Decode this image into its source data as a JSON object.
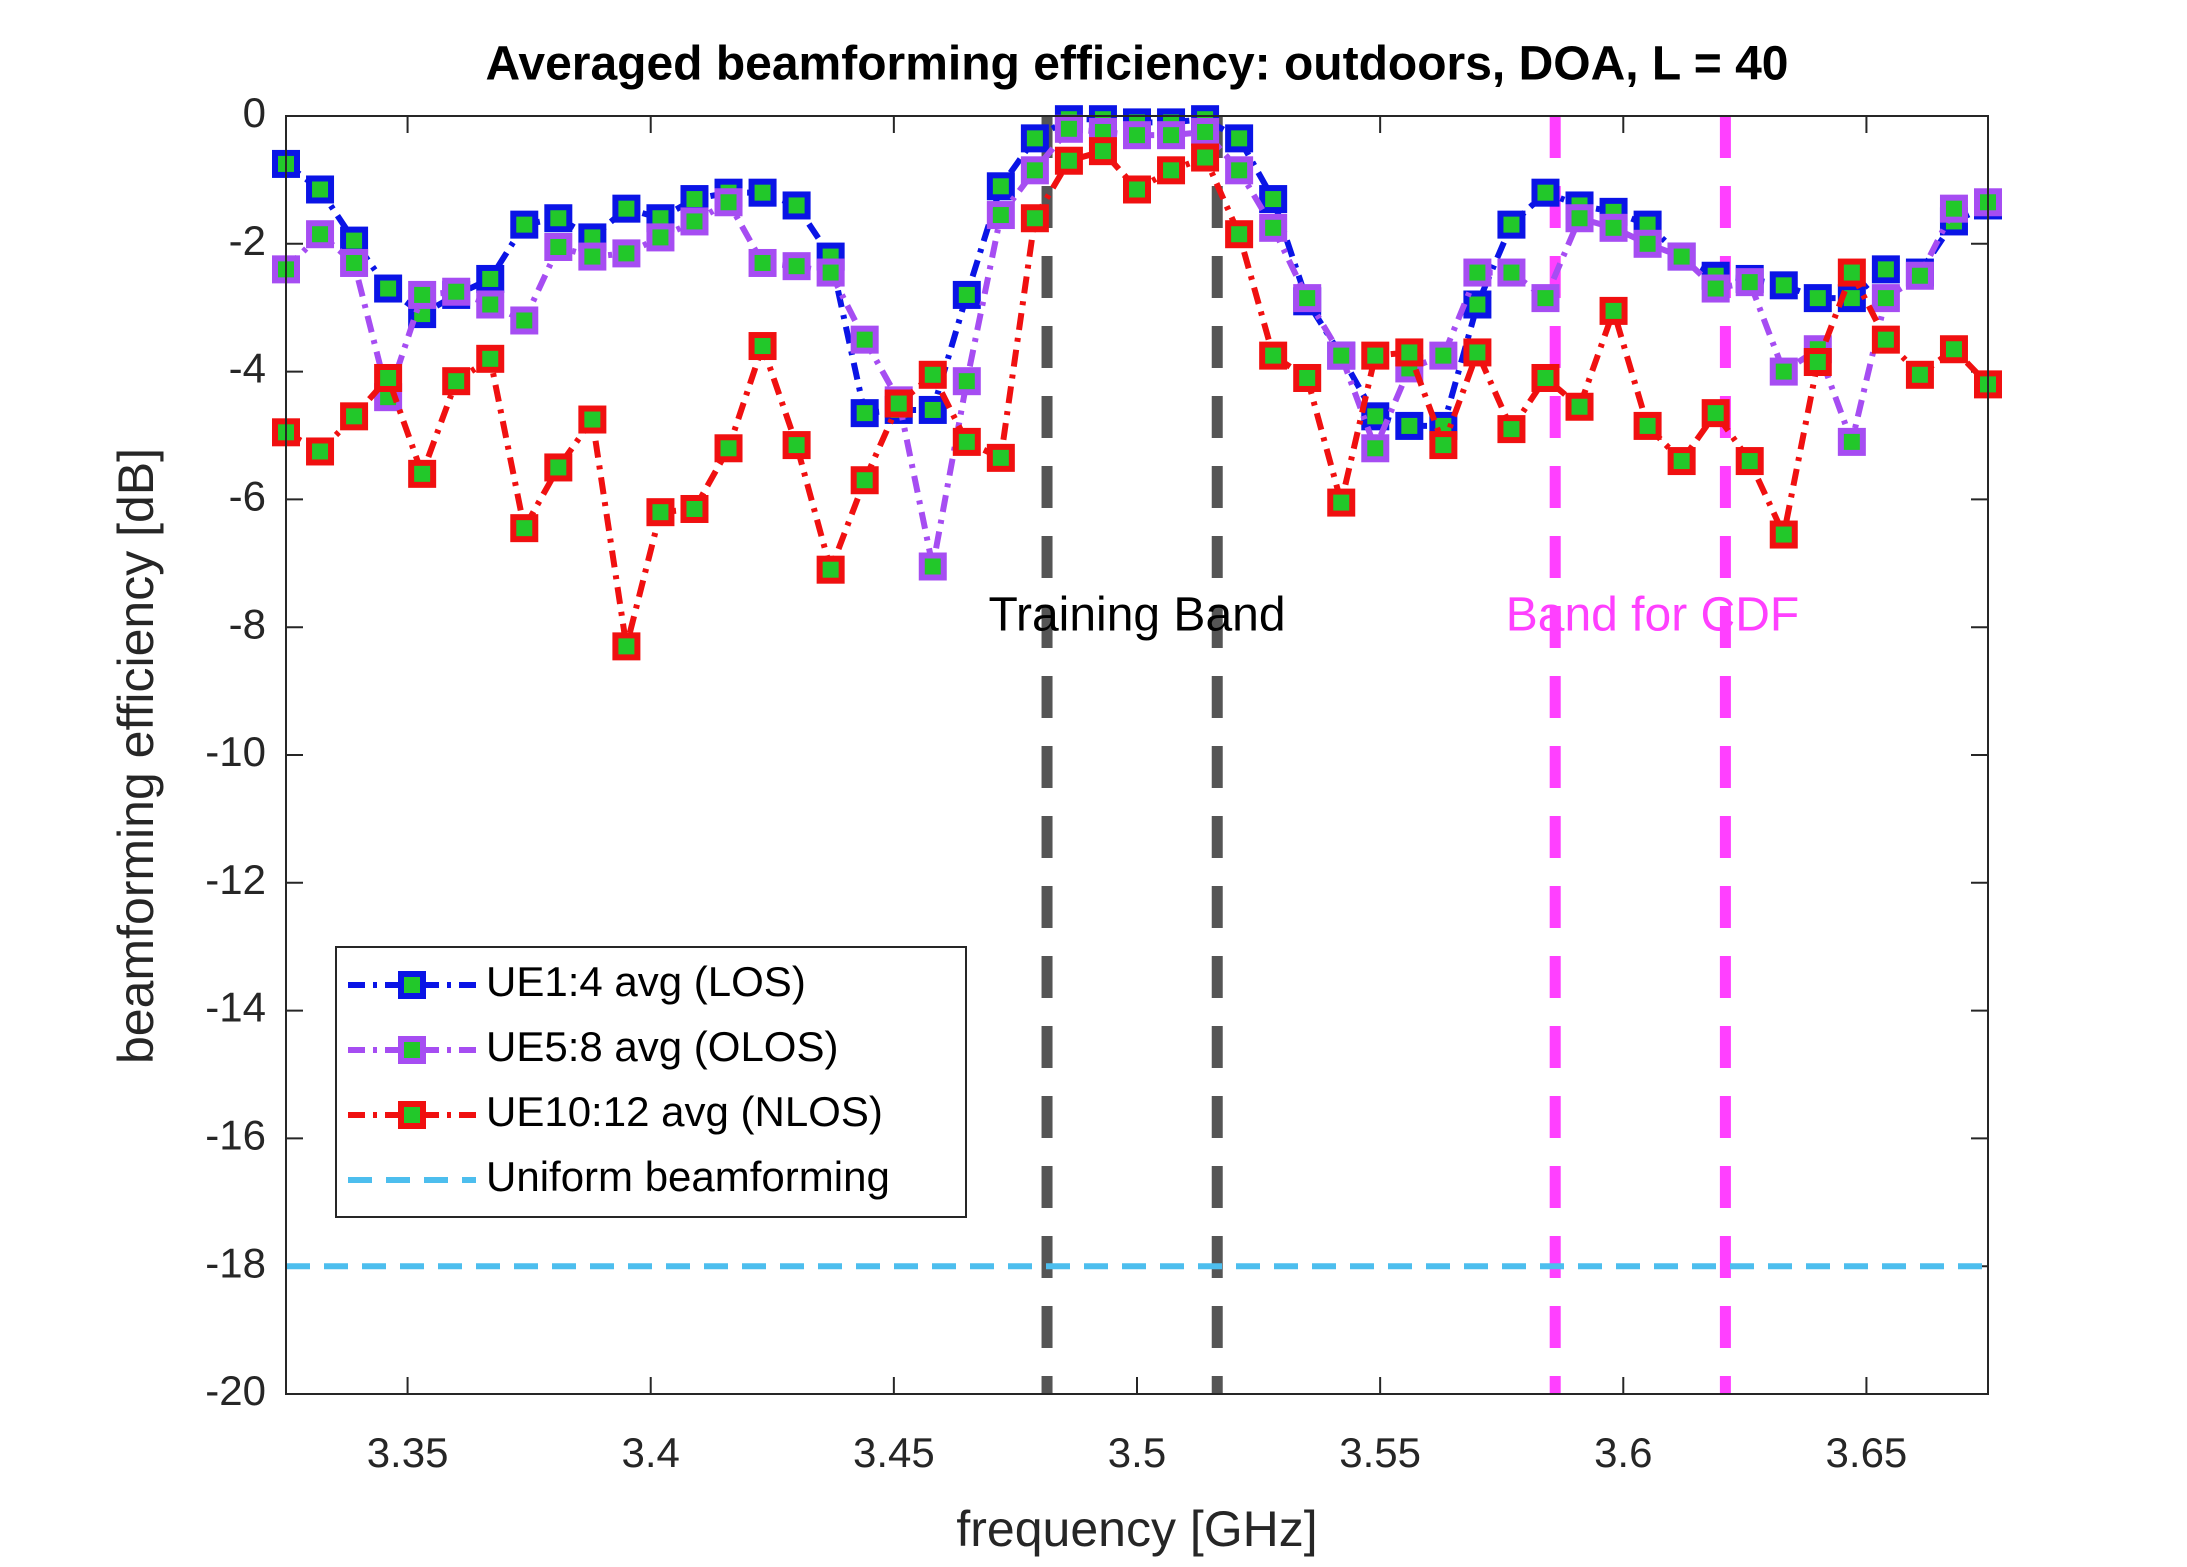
{
  "chart_data": {
    "type": "line",
    "title": "Averaged beamforming efficiency: outdoors, DOA, L = 40",
    "xlabel": "frequency [GHz]",
    "ylabel": "beamforming efficiency [dB]",
    "xlim": [
      3.325,
      3.675
    ],
    "ylim": [
      -20,
      0
    ],
    "xticks": [
      3.35,
      3.4,
      3.45,
      3.5,
      3.55,
      3.6,
      3.65
    ],
    "yticks": [
      -20,
      -18,
      -16,
      -14,
      -12,
      -10,
      -8,
      -6,
      -4,
      -2,
      0
    ],
    "legend": "lower left",
    "marker_fill": "#22c82a",
    "x": [
      3.325,
      3.332,
      3.339,
      3.346,
      3.353,
      3.36,
      3.367,
      3.374,
      3.381,
      3.388,
      3.395,
      3.402,
      3.409,
      3.416,
      3.423,
      3.43,
      3.437,
      3.444,
      3.451,
      3.458,
      3.465,
      3.472,
      3.479,
      3.486,
      3.493,
      3.5,
      3.507,
      3.514,
      3.521,
      3.528,
      3.535,
      3.542,
      3.549,
      3.556,
      3.563,
      3.57,
      3.577,
      3.584,
      3.591,
      3.598,
      3.605,
      3.612,
      3.619,
      3.626,
      3.633,
      3.64,
      3.647,
      3.654,
      3.661,
      3.668,
      3.675
    ],
    "series": [
      {
        "name": "UE1:4 avg (LOS)",
        "color": "#0a14e6",
        "values": [
          -0.75,
          -1.15,
          -1.95,
          -2.7,
          -3.1,
          -2.8,
          -2.55,
          -1.7,
          -1.6,
          -1.9,
          -1.45,
          -1.6,
          -1.3,
          -1.2,
          -1.2,
          -1.4,
          -2.2,
          -4.65,
          -4.6,
          -4.6,
          -2.8,
          -1.1,
          -0.35,
          -0.05,
          -0.05,
          -0.1,
          -0.1,
          -0.05,
          -0.35,
          -1.3,
          -2.9,
          -3.75,
          -4.7,
          -4.85,
          -4.85,
          -2.95,
          -1.7,
          -1.2,
          -1.4,
          -1.5,
          -1.7,
          -2.2,
          -2.5,
          -2.55,
          -2.65,
          -2.85,
          -2.85,
          -2.4,
          -2.45,
          -1.65,
          -1.4
        ]
      },
      {
        "name": "UE5:8 avg (OLOS)",
        "color": "#a64df2",
        "values": [
          -2.4,
          -1.85,
          -2.3,
          -4.4,
          -2.8,
          -2.75,
          -2.95,
          -3.2,
          -2.05,
          -2.2,
          -2.15,
          -1.9,
          -1.65,
          -1.35,
          -2.3,
          -2.35,
          -2.45,
          -3.5,
          -4.45,
          -7.05,
          -4.15,
          -1.55,
          -0.85,
          -0.2,
          -0.25,
          -0.3,
          -0.3,
          -0.25,
          -0.85,
          -1.75,
          -2.85,
          -3.75,
          -5.2,
          -3.95,
          -3.75,
          -2.45,
          -2.45,
          -2.85,
          -1.6,
          -1.75,
          -2.0,
          -2.2,
          -2.7,
          -2.6,
          -4.0,
          -3.65,
          -5.1,
          -2.85,
          -2.5,
          -1.45,
          -1.35
        ]
      },
      {
        "name": "UE10:12 avg (NLOS)",
        "color": "#f01010",
        "values": [
          -4.95,
          -5.25,
          -4.7,
          -4.1,
          -5.6,
          -4.15,
          -3.8,
          -6.45,
          -5.5,
          -4.75,
          -8.3,
          -6.2,
          -6.15,
          -5.2,
          -3.6,
          -5.15,
          -7.1,
          -5.7,
          -4.5,
          -4.05,
          -5.1,
          -5.35,
          -1.6,
          -0.7,
          -0.55,
          -1.15,
          -0.85,
          -0.65,
          -1.85,
          -3.75,
          -4.1,
          -6.05,
          -3.75,
          -3.7,
          -5.15,
          -3.7,
          -4.9,
          -4.1,
          -4.55,
          -3.05,
          -4.85,
          -5.4,
          -4.65,
          -5.4,
          -6.55,
          -3.85,
          -2.45,
          -3.5,
          -4.05,
          -3.65,
          -4.2
        ]
      },
      {
        "name": "Uniform beamforming",
        "color": "#4dbeee",
        "y": -18
      }
    ],
    "vlines": [
      {
        "x": 3.4815,
        "color": "#555555"
      },
      {
        "x": 3.5165,
        "color": "#555555"
      },
      {
        "x": 3.586,
        "color": "#ff40ff"
      },
      {
        "x": 3.621,
        "color": "#ff40ff"
      }
    ],
    "annotations": [
      {
        "text": "Training Band",
        "x": 3.5,
        "y": -7.85,
        "color": "#000000"
      },
      {
        "text": "Band for CDF",
        "x": 3.606,
        "y": -7.85,
        "color": "#ff40ff"
      }
    ]
  }
}
